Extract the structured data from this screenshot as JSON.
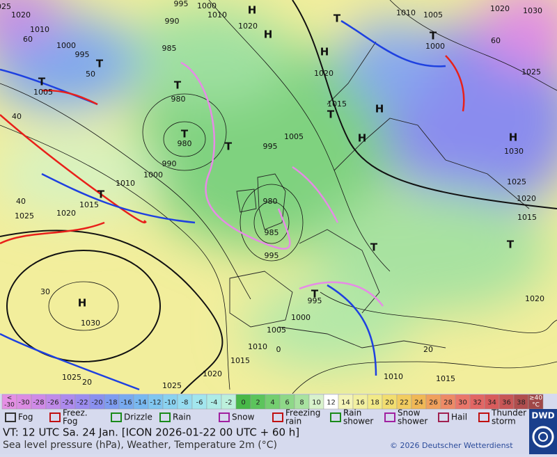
{
  "map": {
    "labels": [
      "1025",
      "1020",
      "1010",
      "1000",
      "995",
      "T",
      "1005",
      "T",
      "T",
      "980",
      "T",
      "980",
      "990",
      "1000",
      "1010",
      "T",
      "1015",
      "1025",
      "1020",
      "H",
      "1030",
      "1025",
      "1025",
      "1020",
      "1015",
      "1010",
      "1005",
      "1000",
      "T",
      "995",
      "985",
      "980",
      "995",
      "T",
      "995",
      "1005",
      "1015",
      "T",
      "H",
      "1020",
      "H",
      "T",
      "H",
      "1020",
      "H",
      "995",
      "1000",
      "1010",
      "990",
      "985",
      "1010",
      "1005",
      "T",
      "1000",
      "1020",
      "1030",
      "1025",
      "H",
      "1030",
      "1025",
      "1020",
      "1015",
      "T",
      "T",
      "1020",
      "1010",
      "1015",
      "H",
      "40",
      "40",
      "30",
      "20",
      "60",
      "50",
      "60",
      "20",
      "0"
    ]
  },
  "legend": {
    "low": {
      "lines": [
        "<",
        "-30"
      ],
      "color": "#e48fe4"
    },
    "temperatures": [
      -30,
      -28,
      -26,
      -24,
      -22,
      -20,
      -18,
      -16,
      -14,
      -12,
      -10,
      -8,
      -6,
      -4,
      -2,
      0,
      2,
      4,
      6,
      8,
      10,
      12,
      14,
      16,
      18,
      20,
      22,
      24,
      26,
      28,
      30,
      32,
      34,
      36,
      38
    ],
    "colors": [
      "#dc8ce4",
      "#d08ae8",
      "#c08aea",
      "#ae8aee",
      "#9c8cf0",
      "#8a90f0",
      "#7e9cf0",
      "#78aaf0",
      "#78b8f0",
      "#80c6f0",
      "#8ad2f0",
      "#96dcf0",
      "#a2e6ee",
      "#aeece6",
      "#bcf0dc",
      "#48b848",
      "#5cc45c",
      "#74ce70",
      "#8ed888",
      "#a8e2a0",
      "#d8f2cc",
      "#ffffff",
      "#f4f4b8",
      "#f2f0a0",
      "#f2ea88",
      "#f2de70",
      "#f2cc60",
      "#f0b856",
      "#f0a05c",
      "#ee8a66",
      "#ea766a",
      "#e26664",
      "#d85c5c",
      "#c85656",
      "#b04e4e"
    ],
    "high": {
      "lines": [
        "≥40",
        "°C"
      ],
      "color": "#a04848"
    },
    "weather": [
      [
        "Fog"
      ],
      [
        "Freez.",
        "Fog"
      ],
      [
        "Drizzle"
      ],
      [
        "Rain"
      ],
      [
        "Snow"
      ],
      [
        "Freezing",
        "rain"
      ],
      [
        "Rain",
        "shower"
      ],
      [
        "Snow",
        "shower"
      ],
      [
        "Hail"
      ],
      [
        "Thunder",
        "storm"
      ]
    ]
  },
  "footer": {
    "valid_time": "VT: 12 UTC Sa.  24 Jan. [ICON 2026-01-22  00 UTC + 60 h]",
    "description": "Sea level pressure (hPa), Weather, Temperature 2m (°C)",
    "copyright": "© 2026 Deutscher Wetterdienst",
    "logo": "DWD"
  }
}
